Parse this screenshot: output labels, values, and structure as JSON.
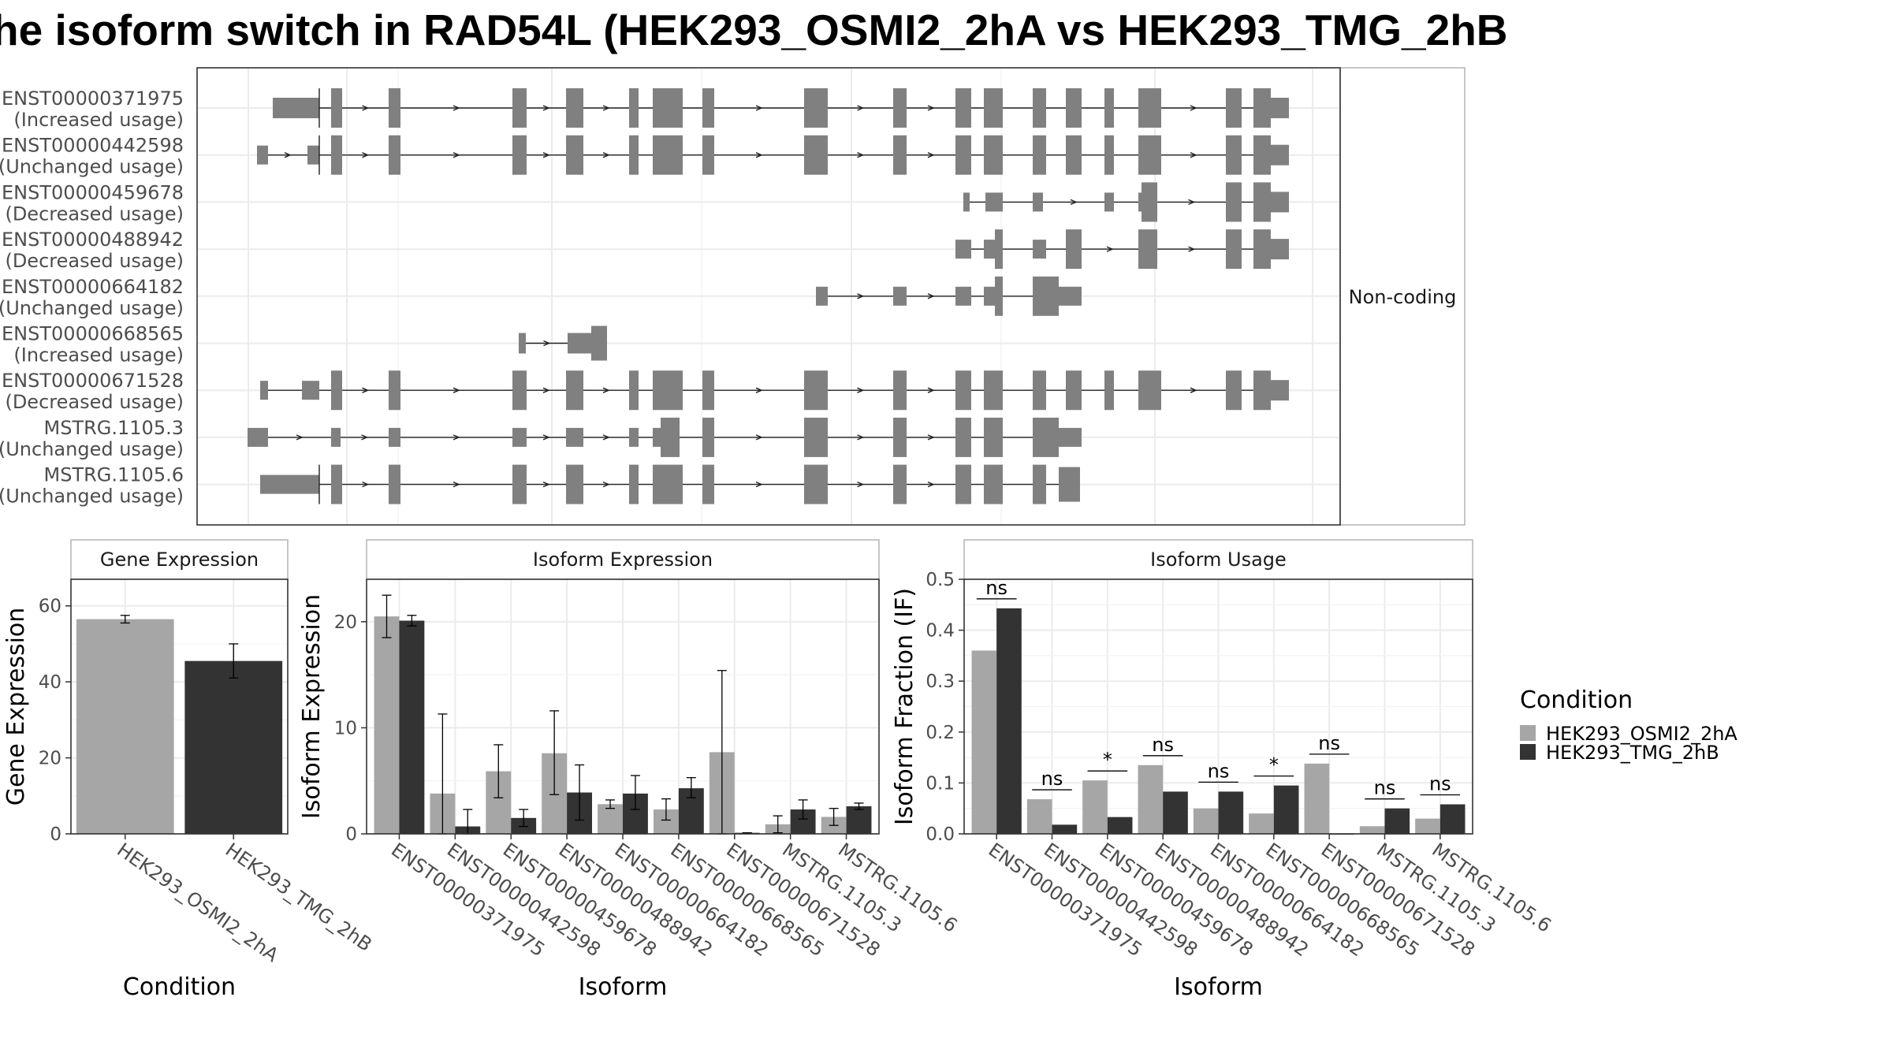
{
  "title": "he isoform switch in RAD54L (HEK293_OSMI2_2hA vs HEK293_TMG_2hB",
  "colors": {
    "cond1": "#a6a6a6",
    "cond2": "#333333",
    "exon": "#808080",
    "grid": "#ebebeb",
    "panel_border": "#333333",
    "strip_bg": "#ffffff"
  },
  "structure_panel": {
    "strip_label": "Non-coding",
    "transcripts": [
      {
        "id": "ENST00000371975",
        "status": "(Increased usage)"
      },
      {
        "id": "ENST00000442598",
        "status": "(Unchanged usage)"
      },
      {
        "id": "ENST00000459678",
        "status": "(Decreased usage)"
      },
      {
        "id": "ENST00000488942",
        "status": "(Decreased usage)"
      },
      {
        "id": "ENST00000664182",
        "status": "(Unchanged usage)"
      },
      {
        "id": "ENST00000668565",
        "status": "(Increased usage)"
      },
      {
        "id": "ENST00000671528",
        "status": "(Decreased usage)"
      },
      {
        "id": "MSTRG.1105.3",
        "status": "(Unchanged usage)"
      },
      {
        "id": "MSTRG.1105.6",
        "status": "(Unchanged usage)"
      }
    ]
  },
  "legend": {
    "title": "Condition",
    "items": [
      "HEK293_OSMI2_2hA",
      "HEK293_TMG_2hB"
    ]
  },
  "chart_data": [
    {
      "type": "bar",
      "title": "Gene Expression",
      "xlabel": "Condition",
      "ylabel": "Gene Expression",
      "ylim": [
        0,
        67
      ],
      "yticks": [
        0,
        20,
        40,
        60
      ],
      "categories": [
        "HEK293_OSMI2_2hA",
        "HEK293_TMG_2hB"
      ],
      "values": [
        56.5,
        45.5
      ],
      "error_low": [
        55.5,
        41
      ],
      "error_high": [
        57.5,
        50
      ]
    },
    {
      "type": "bar",
      "title": "Isoform Expression",
      "xlabel": "Isoform",
      "ylabel": "Isoform Expression",
      "ylim": [
        0,
        24
      ],
      "yticks": [
        0,
        10,
        20
      ],
      "categories": [
        "ENST00000371975",
        "ENST00000442598",
        "ENST00000459678",
        "ENST00000488942",
        "ENST00000664182",
        "ENST00000668565",
        "ENST00000671528",
        "MSTRG.1105.3",
        "MSTRG.1105.6"
      ],
      "series": [
        {
          "name": "HEK293_OSMI2_2hA",
          "values": [
            20.5,
            3.8,
            5.9,
            7.6,
            2.8,
            2.3,
            7.7,
            0.9,
            1.6
          ],
          "error_low": [
            18.5,
            0,
            3.4,
            3.7,
            2.4,
            1.3,
            0,
            0.1,
            0.8
          ],
          "error_high": [
            22.5,
            11.3,
            8.4,
            11.6,
            3.2,
            3.3,
            15.4,
            1.7,
            2.4
          ]
        },
        {
          "name": "HEK293_TMG_2hB",
          "values": [
            20.1,
            0.7,
            1.5,
            3.9,
            3.8,
            4.3,
            0.1,
            2.3,
            2.6
          ],
          "error_low": [
            19.6,
            0,
            0.7,
            1.3,
            2.3,
            3.4,
            0.1,
            1.4,
            2.3
          ],
          "error_high": [
            20.6,
            2.3,
            2.3,
            6.5,
            5.5,
            5.3,
            0.1,
            3.2,
            2.9
          ]
        }
      ]
    },
    {
      "type": "bar",
      "title": "Isoform Usage",
      "xlabel": "Isoform",
      "ylabel": "Isoform Fraction (IF)",
      "ylim": [
        0,
        0.5
      ],
      "yticks": [
        0.0,
        0.1,
        0.2,
        0.3,
        0.4,
        0.5
      ],
      "ytick_labels": [
        "0.0",
        "0.1",
        "0.2",
        "0.3",
        "0.4",
        "0.5"
      ],
      "categories": [
        "ENST00000371975",
        "ENST00000442598",
        "ENST00000459678",
        "ENST00000488942",
        "ENST00000664182",
        "ENST00000668565",
        "ENST00000671528",
        "MSTRG.1105.3",
        "MSTRG.1105.6"
      ],
      "series": [
        {
          "name": "HEK293_OSMI2_2hA",
          "values": [
            0.36,
            0.068,
            0.105,
            0.135,
            0.05,
            0.04,
            0.138,
            0.015,
            0.03
          ]
        },
        {
          "name": "HEK293_TMG_2hB",
          "values": [
            0.443,
            0.018,
            0.033,
            0.083,
            0.083,
            0.095,
            0.0,
            0.05,
            0.058
          ]
        }
      ],
      "significance": [
        "ns",
        "ns",
        "*",
        "ns",
        "ns",
        "*",
        "ns",
        "ns",
        "ns"
      ]
    }
  ]
}
